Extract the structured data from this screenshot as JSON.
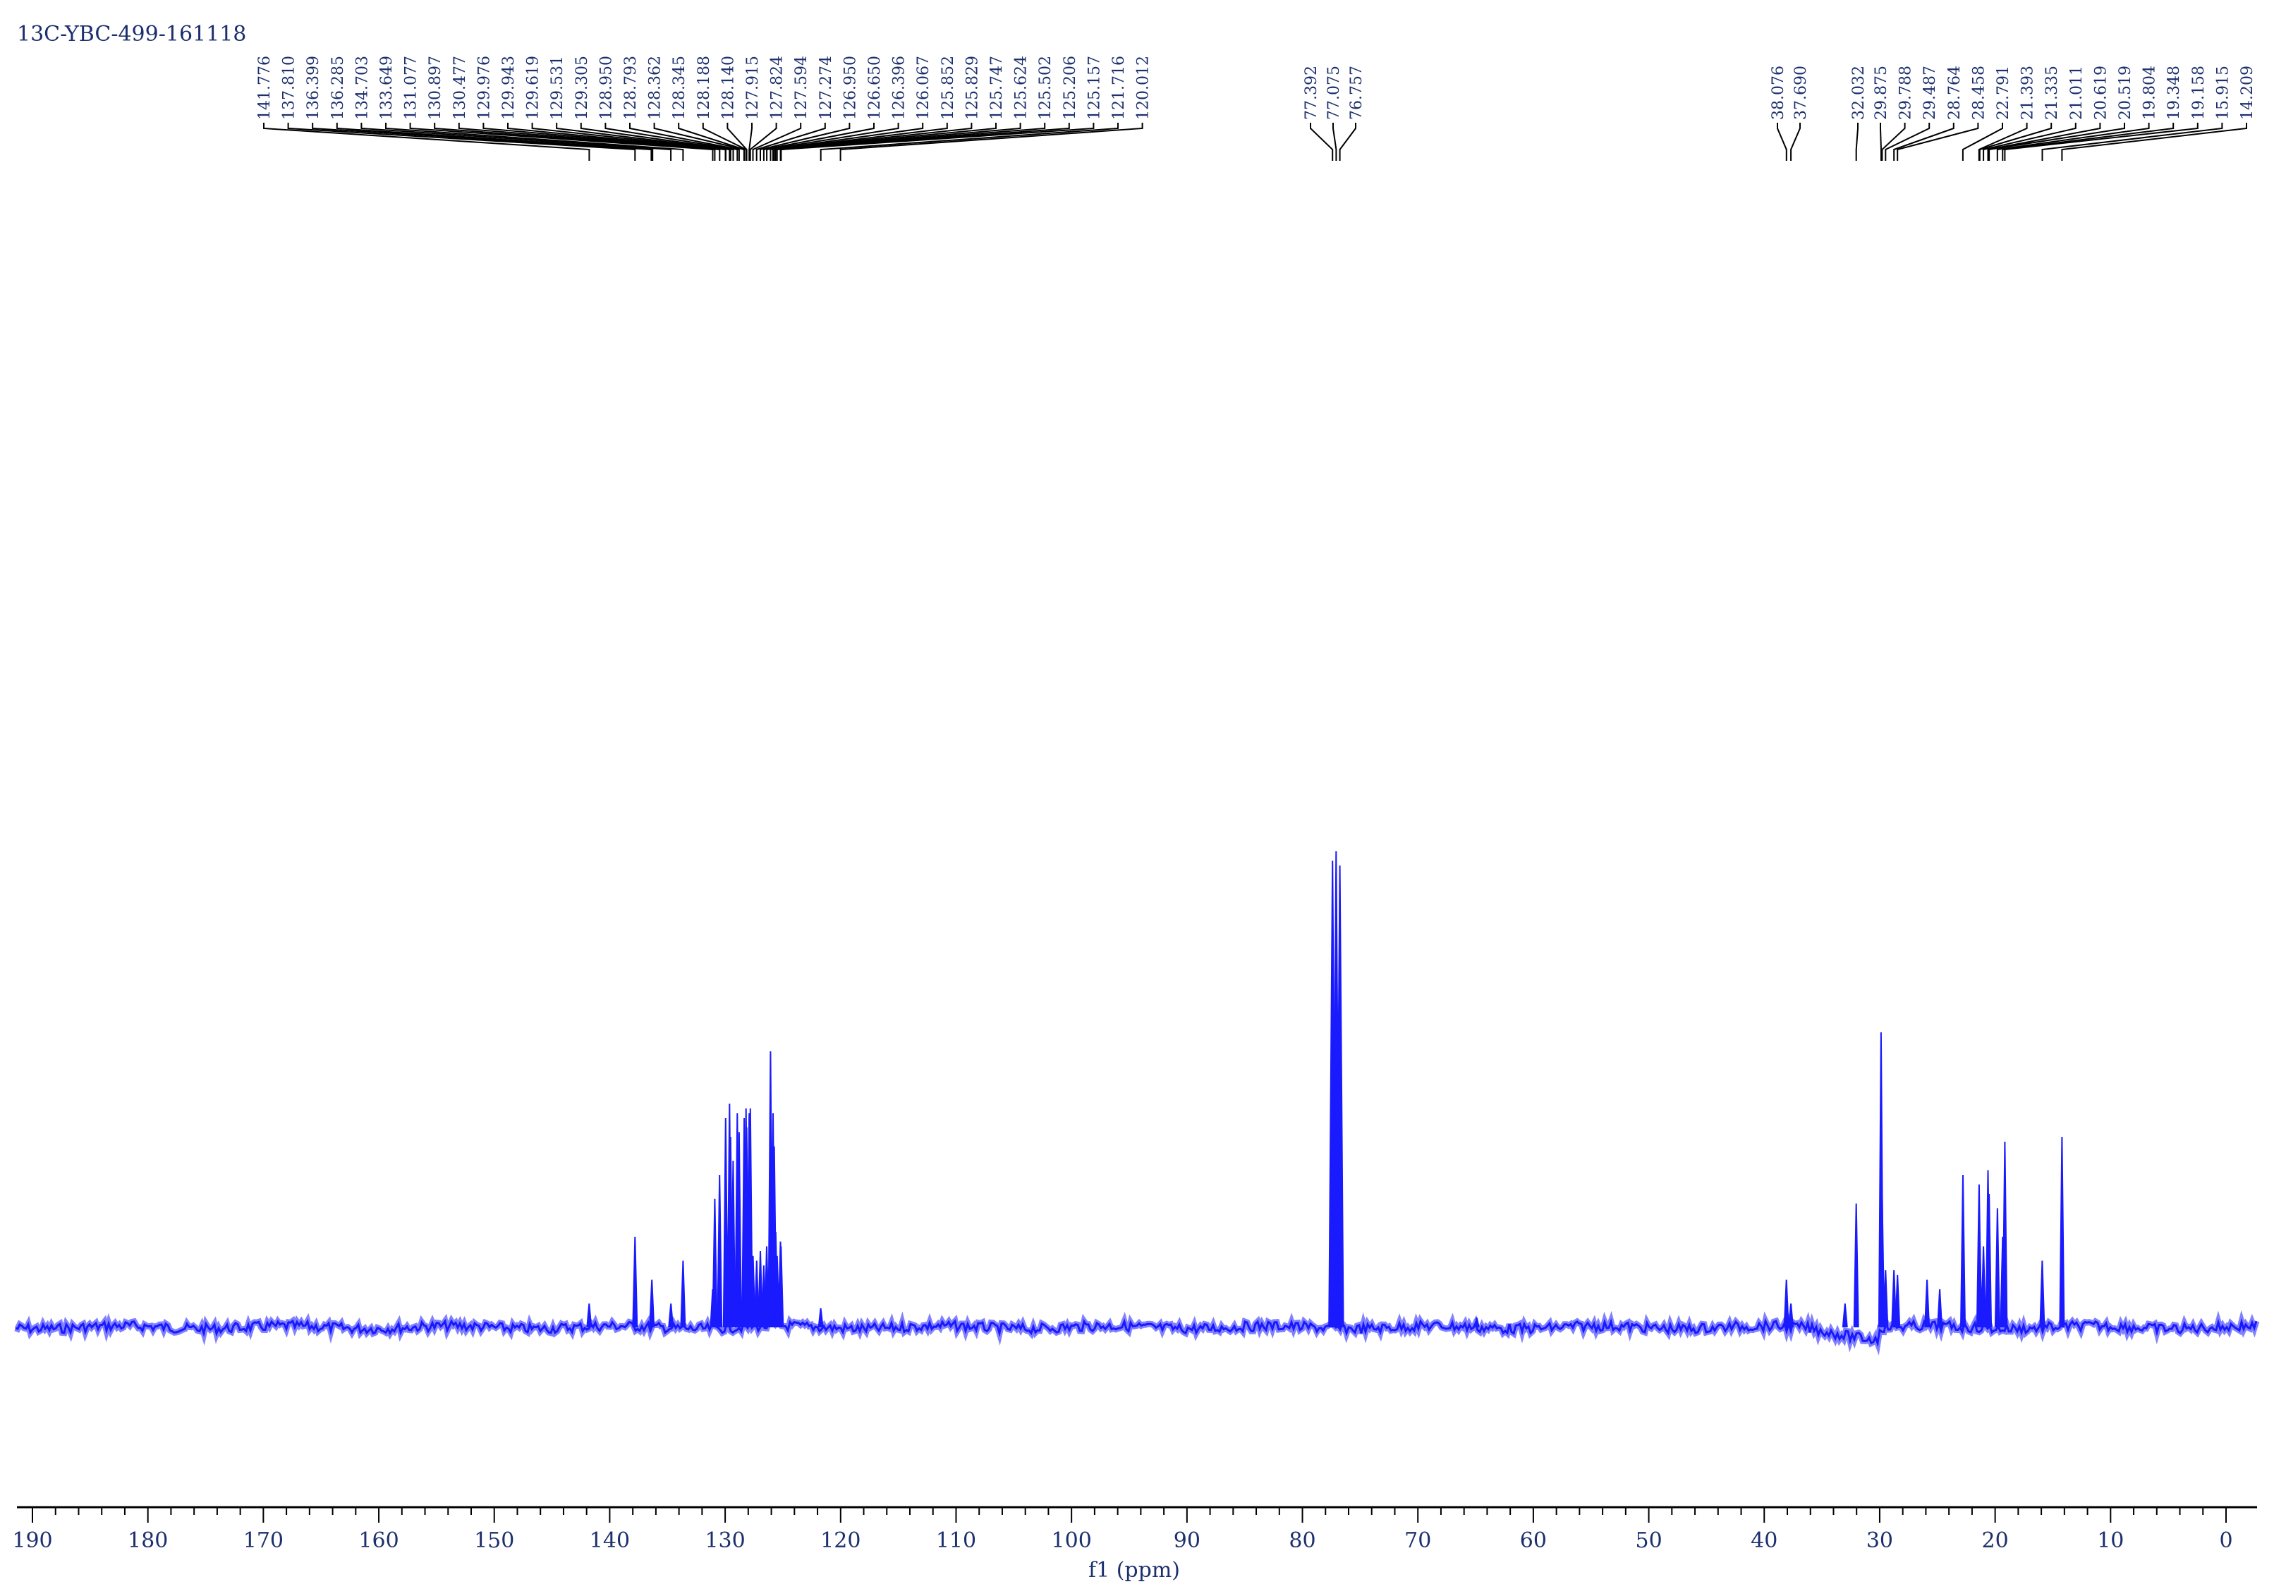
{
  "chart_data": {
    "type": "line",
    "title": "13C-YBC-499-161118",
    "xlabel": "f1 (ppm)",
    "ylabel": "",
    "x_reversed": true,
    "xlim": [
      190,
      0
    ],
    "grid": false,
    "xticks": [
      "190",
      "180",
      "170",
      "160",
      "150",
      "140",
      "130",
      "120",
      "110",
      "100",
      "90",
      "80",
      "70",
      "60",
      "50",
      "40",
      "30",
      "20",
      "10",
      "0"
    ],
    "colors": {
      "spectrum": "#1a1aff",
      "labels": "#1c2f6e",
      "axis": "#000000"
    },
    "peak_labels": {
      "aromatic": [
        "141.776",
        "137.810",
        "136.399",
        "136.285",
        "134.703",
        "133.649",
        "131.077",
        "130.897",
        "130.477",
        "129.976",
        "129.943",
        "129.619",
        "129.531",
        "129.305",
        "128.950",
        "128.793",
        "128.362",
        "128.345",
        "128.188",
        "128.140",
        "127.915",
        "127.824",
        "127.594",
        "127.274",
        "126.950",
        "126.650",
        "126.396",
        "126.067",
        "125.852",
        "125.829",
        "125.747",
        "125.624",
        "125.502",
        "125.206",
        "125.157",
        "121.716",
        "120.012"
      ],
      "solvent": [
        "77.392",
        "77.075",
        "76.757"
      ],
      "group_38": [
        "38.076",
        "37.690"
      ],
      "single_32": [
        "32.032"
      ],
      "aliphatic": [
        "29.875",
        "29.788",
        "29.487",
        "28.764",
        "28.458",
        "22.791",
        "21.393",
        "21.335",
        "21.011",
        "20.619",
        "20.519",
        "19.804",
        "19.348",
        "19.158",
        "15.915",
        "14.209"
      ]
    },
    "peaks": [
      {
        "ppm": 141.78,
        "intensity": 0.05
      },
      {
        "ppm": 137.81,
        "intensity": 0.19
      },
      {
        "ppm": 136.35,
        "intensity": 0.1
      },
      {
        "ppm": 134.7,
        "intensity": 0.05
      },
      {
        "ppm": 133.65,
        "intensity": 0.14
      },
      {
        "ppm": 131.08,
        "intensity": 0.08
      },
      {
        "ppm": 130.9,
        "intensity": 0.27
      },
      {
        "ppm": 130.48,
        "intensity": 0.32
      },
      {
        "ppm": 129.96,
        "intensity": 0.44
      },
      {
        "ppm": 129.62,
        "intensity": 0.47
      },
      {
        "ppm": 129.53,
        "intensity": 0.4
      },
      {
        "ppm": 129.31,
        "intensity": 0.35
      },
      {
        "ppm": 128.95,
        "intensity": 0.45
      },
      {
        "ppm": 128.79,
        "intensity": 0.41
      },
      {
        "ppm": 128.35,
        "intensity": 0.44
      },
      {
        "ppm": 128.19,
        "intensity": 0.46
      },
      {
        "ppm": 128.14,
        "intensity": 0.42
      },
      {
        "ppm": 127.92,
        "intensity": 0.45
      },
      {
        "ppm": 127.82,
        "intensity": 0.46
      },
      {
        "ppm": 127.59,
        "intensity": 0.15
      },
      {
        "ppm": 127.27,
        "intensity": 0.14
      },
      {
        "ppm": 126.95,
        "intensity": 0.16
      },
      {
        "ppm": 126.65,
        "intensity": 0.13
      },
      {
        "ppm": 126.4,
        "intensity": 0.17
      },
      {
        "ppm": 126.07,
        "intensity": 0.58
      },
      {
        "ppm": 125.85,
        "intensity": 0.45
      },
      {
        "ppm": 125.75,
        "intensity": 0.38
      },
      {
        "ppm": 125.62,
        "intensity": 0.2
      },
      {
        "ppm": 125.5,
        "intensity": 0.15
      },
      {
        "ppm": 125.21,
        "intensity": 0.18
      },
      {
        "ppm": 125.16,
        "intensity": 0.17
      },
      {
        "ppm": 121.72,
        "intensity": 0.04
      },
      {
        "ppm": 77.39,
        "intensity": 0.98
      },
      {
        "ppm": 77.08,
        "intensity": 1.0
      },
      {
        "ppm": 76.76,
        "intensity": 0.97
      },
      {
        "ppm": 64.9,
        "intensity": 0.02
      },
      {
        "ppm": 38.08,
        "intensity": 0.1
      },
      {
        "ppm": 37.69,
        "intensity": 0.05
      },
      {
        "ppm": 33.0,
        "intensity": 0.05
      },
      {
        "ppm": 32.03,
        "intensity": 0.26
      },
      {
        "ppm": 29.88,
        "intensity": 0.62
      },
      {
        "ppm": 29.79,
        "intensity": 0.28
      },
      {
        "ppm": 29.49,
        "intensity": 0.12
      },
      {
        "ppm": 28.76,
        "intensity": 0.12
      },
      {
        "ppm": 28.46,
        "intensity": 0.11
      },
      {
        "ppm": 25.9,
        "intensity": 0.1
      },
      {
        "ppm": 24.8,
        "intensity": 0.08
      },
      {
        "ppm": 22.79,
        "intensity": 0.32
      },
      {
        "ppm": 21.39,
        "intensity": 0.3
      },
      {
        "ppm": 21.34,
        "intensity": 0.2
      },
      {
        "ppm": 21.01,
        "intensity": 0.17
      },
      {
        "ppm": 20.62,
        "intensity": 0.33
      },
      {
        "ppm": 20.52,
        "intensity": 0.28
      },
      {
        "ppm": 19.8,
        "intensity": 0.25
      },
      {
        "ppm": 19.35,
        "intensity": 0.19
      },
      {
        "ppm": 19.16,
        "intensity": 0.39
      },
      {
        "ppm": 15.92,
        "intensity": 0.14
      },
      {
        "ppm": 14.21,
        "intensity": 0.4
      }
    ]
  }
}
